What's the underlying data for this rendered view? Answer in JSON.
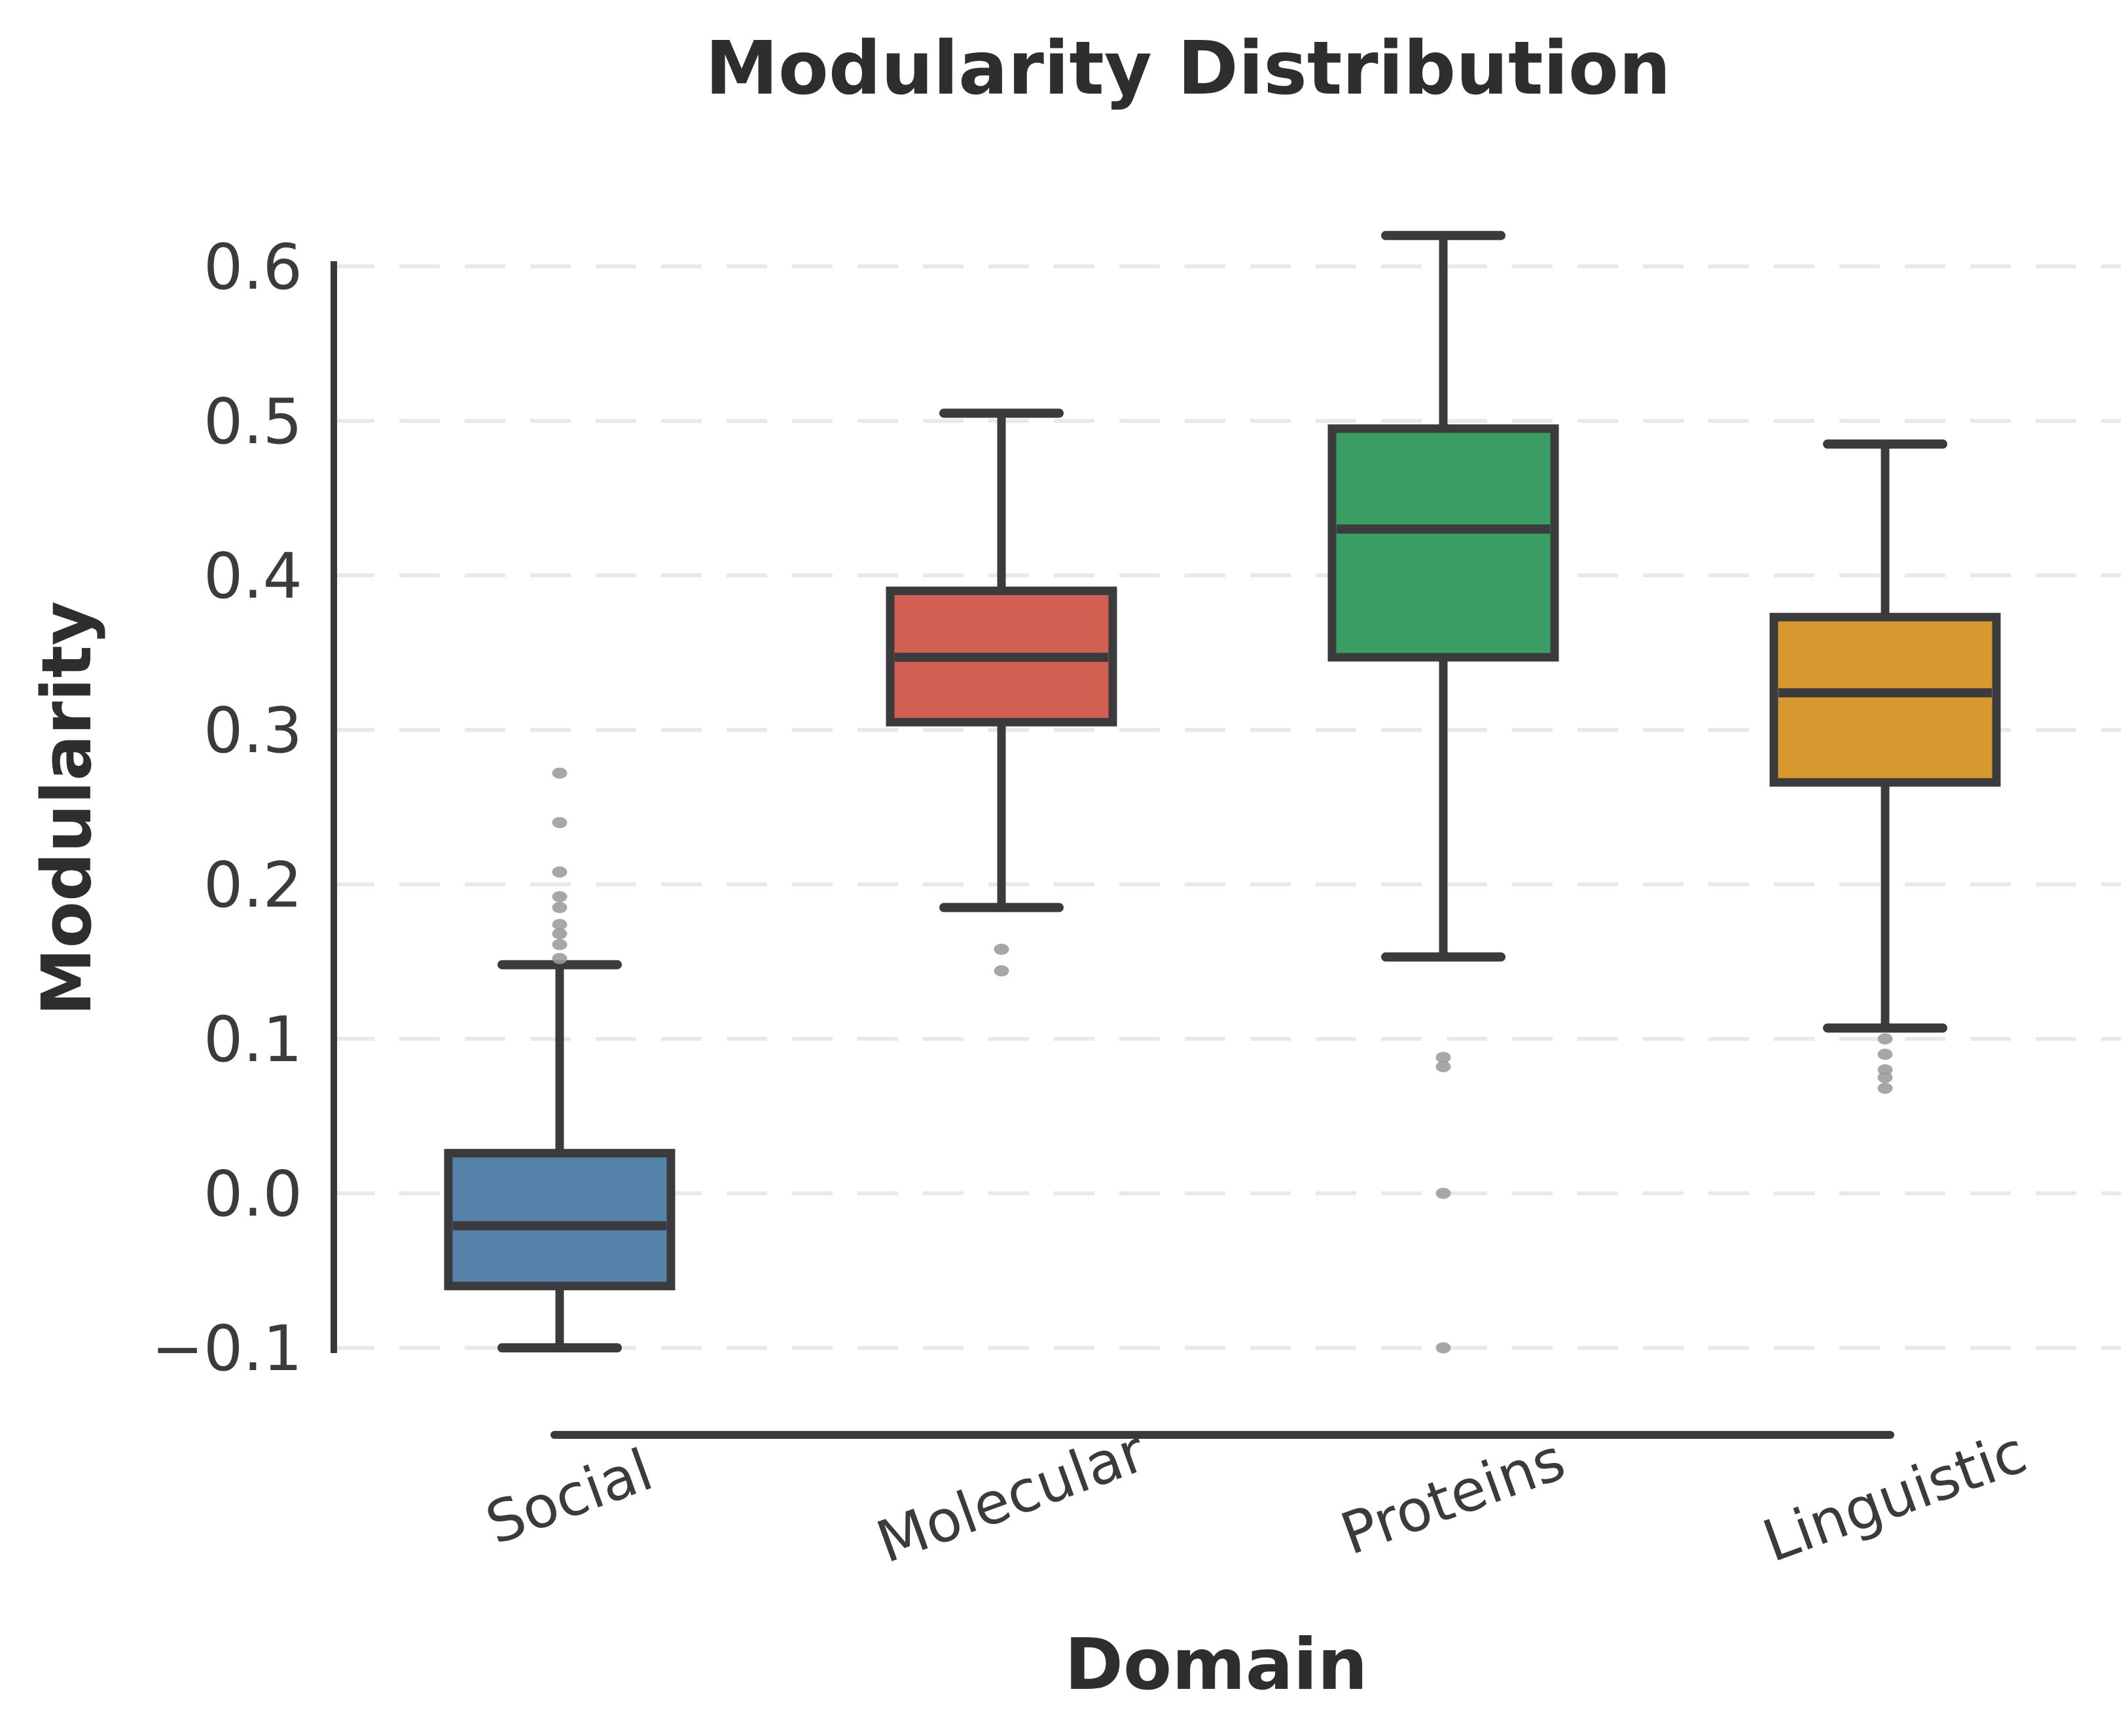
{
  "chart_data": {
    "type": "box",
    "title": "Modularity Distribution",
    "xlabel": "Domain",
    "ylabel": "Modularity",
    "categories": [
      "Social",
      "Molecular",
      "Proteins",
      "Linguistic"
    ],
    "grid": "horizontal-dashed",
    "legend": "none",
    "ylim": [
      -0.135,
      0.635
    ],
    "ytick_values": [
      0.6,
      0.5,
      0.4,
      0.3,
      0.2,
      0.1,
      0.0,
      -0.1
    ],
    "ytick_labels": [
      "0.6",
      "0.5",
      "0.4",
      "0.3",
      "0.2",
      "0.1",
      "0.0",
      "−0.1"
    ],
    "series": [
      {
        "name": "Social",
        "color": "#5482A8",
        "whislo": -0.1,
        "q1": -0.06,
        "med": -0.021,
        "q3": 0.026,
        "whishi": 0.148,
        "fliers": [
          0.152,
          0.161,
          0.168,
          0.174,
          0.185,
          0.192,
          0.208,
          0.24,
          0.272
        ]
      },
      {
        "name": "Molecular",
        "color": "#D15F52",
        "whislo": 0.185,
        "q1": 0.305,
        "med": 0.347,
        "q3": 0.39,
        "whishi": 0.505,
        "fliers": [
          0.158,
          0.144
        ]
      },
      {
        "name": "Proteins",
        "color": "#3A9D63",
        "whislo": 0.153,
        "q1": 0.347,
        "med": 0.43,
        "q3": 0.495,
        "whishi": 0.62,
        "fliers": [
          0.088,
          0.082,
          0.0,
          -0.1
        ]
      },
      {
        "name": "Linguistic",
        "color": "#D8982F",
        "whislo": 0.107,
        "q1": 0.266,
        "med": 0.324,
        "q3": 0.373,
        "whishi": 0.485,
        "fliers": [
          0.1,
          0.09,
          0.08,
          0.075,
          0.068
        ]
      }
    ],
    "style_colors": {
      "box_edge": "#3B3B3D",
      "spine": "#39393B",
      "gridline": "#E9E9E9",
      "flier": "#9B9B9B",
      "tick_text": "#3B3B3B",
      "label_text": "#2E2E2E"
    }
  }
}
